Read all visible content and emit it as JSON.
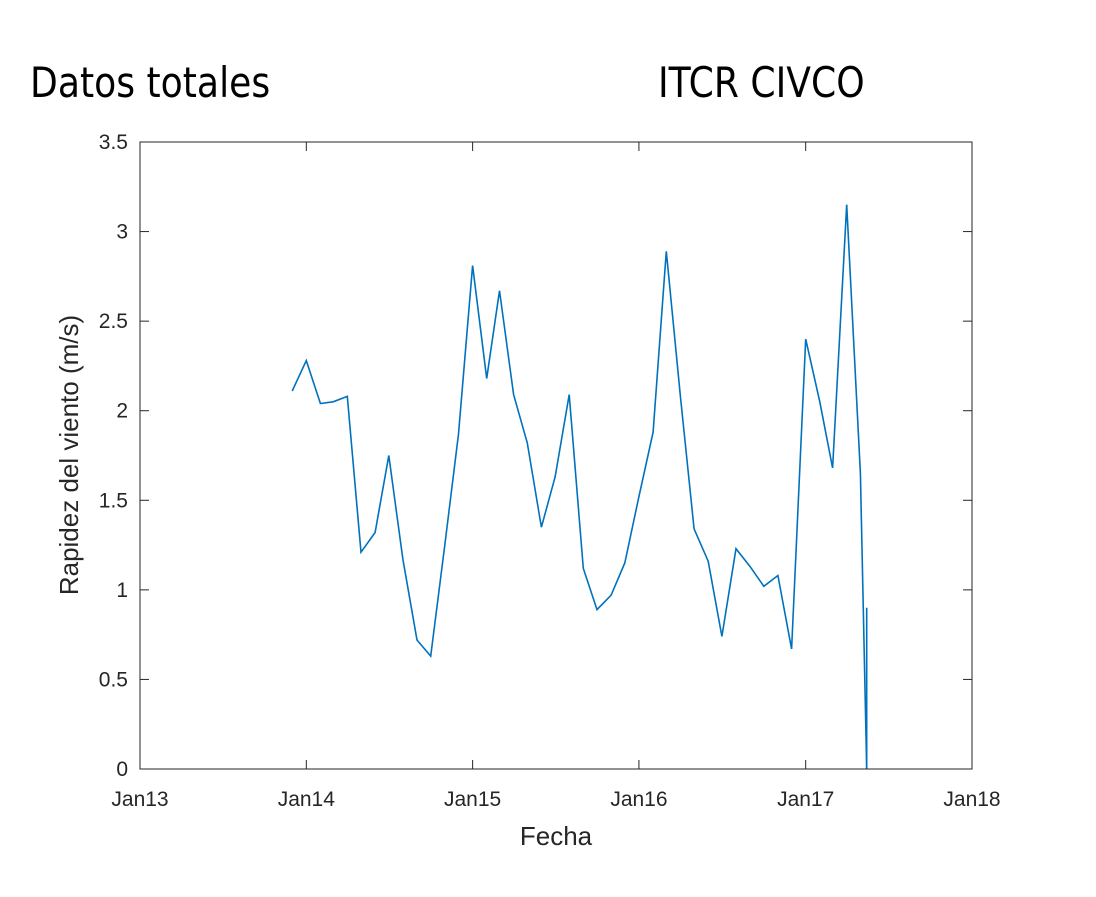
{
  "titles": {
    "left": "Datos totales",
    "right": "ITCR CIVCO"
  },
  "chart_data": {
    "type": "line",
    "xlabel": "Fecha",
    "ylabel": "Rapidez del viento (m/s)",
    "xlim": [
      "2013-01-01",
      "2018-01-01"
    ],
    "ylim": [
      0,
      3.5
    ],
    "x_ticks": [
      {
        "date": "2013-01-01",
        "label": "Jan13"
      },
      {
        "date": "2014-01-01",
        "label": "Jan14"
      },
      {
        "date": "2015-01-01",
        "label": "Jan15"
      },
      {
        "date": "2016-01-01",
        "label": "Jan16"
      },
      {
        "date": "2017-01-01",
        "label": "Jan17"
      },
      {
        "date": "2018-01-01",
        "label": "Jan18"
      }
    ],
    "y_ticks": [
      "0",
      "0.5",
      "1",
      "1.5",
      "2",
      "2.5",
      "3",
      "3.5"
    ],
    "grid": false,
    "line_color": "#0072BD",
    "series": [
      {
        "x": [
          "2013-12-01",
          "2014-01-01",
          "2014-02-01",
          "2014-03-01",
          "2014-04-01",
          "2014-05-01",
          "2014-06-01",
          "2014-07-01",
          "2014-08-01",
          "2014-09-01",
          "2014-10-01",
          "2014-11-01",
          "2014-12-01",
          "2015-01-01",
          "2015-02-01",
          "2015-03-01",
          "2015-04-01",
          "2015-05-01",
          "2015-06-01",
          "2015-07-01",
          "2015-08-01",
          "2015-09-01",
          "2015-10-01",
          "2015-11-01",
          "2015-12-01",
          "2016-01-01",
          "2016-02-01",
          "2016-03-01",
          "2016-04-01",
          "2016-05-01",
          "2016-06-01",
          "2016-07-01",
          "2016-08-01",
          "2016-09-01",
          "2016-10-01",
          "2016-11-01",
          "2016-12-01",
          "2017-01-01",
          "2017-02-01",
          "2017-03-01",
          "2017-04-01",
          "2017-05-01",
          "2017-05-15"
        ],
        "y": [
          2.11,
          2.28,
          2.04,
          2.05,
          2.08,
          1.21,
          1.32,
          1.75,
          1.17,
          0.72,
          0.63,
          1.25,
          1.87,
          2.81,
          2.18,
          2.67,
          2.09,
          1.82,
          1.35,
          1.63,
          2.09,
          1.12,
          0.89,
          0.97,
          1.15,
          1.52,
          1.88,
          2.89,
          2.08,
          1.34,
          1.16,
          0.74,
          1.23,
          1.13,
          1.02,
          1.08,
          0.67,
          2.4,
          2.05,
          1.68,
          3.15,
          1.65,
          0.0
        ]
      },
      {
        "x": [
          "2017-05-15",
          "2017-05-15"
        ],
        "y": [
          0.0,
          0.9
        ]
      }
    ]
  }
}
